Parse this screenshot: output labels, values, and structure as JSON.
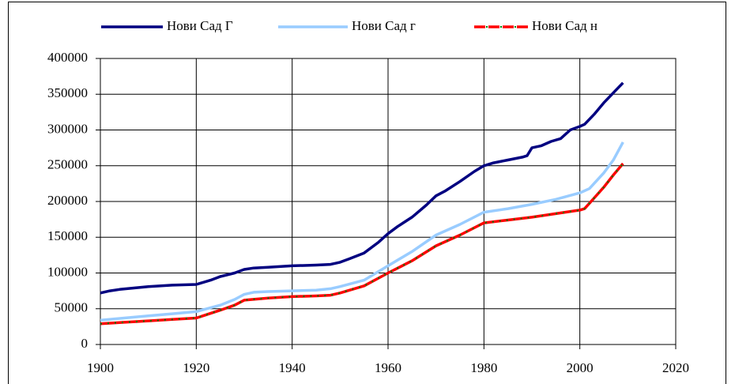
{
  "chart_data": {
    "type": "line",
    "series": [
      {
        "name": "Нови Сад Г",
        "color": "#000080",
        "x": [
          1900,
          1902,
          1904,
          1907,
          1910,
          1915,
          1920,
          1923,
          1925,
          1928,
          1930,
          1932,
          1935,
          1940,
          1945,
          1948,
          1950,
          1952,
          1955,
          1958,
          1960,
          1962,
          1965,
          1968,
          1970,
          1972,
          1975,
          1978,
          1980,
          1982,
          1985,
          1988,
          1989,
          1990,
          1992,
          1994,
          1996,
          1998,
          2000,
          2001,
          2003,
          2005,
          2007,
          2009
        ],
        "values": [
          72000,
          75000,
          77000,
          79000,
          81000,
          83000,
          84000,
          90000,
          95000,
          100000,
          105000,
          107000,
          108000,
          110000,
          111000,
          112000,
          115000,
          120000,
          128000,
          143000,
          155000,
          165000,
          178000,
          195000,
          208000,
          215000,
          228000,
          242000,
          250000,
          254000,
          258000,
          262000,
          264000,
          275000,
          278000,
          284000,
          288000,
          300000,
          305000,
          308000,
          322000,
          338000,
          352000,
          366000
        ]
      },
      {
        "name": "Нови Сад г",
        "color": "#99ccff",
        "x": [
          1900,
          1905,
          1910,
          1915,
          1920,
          1925,
          1928,
          1930,
          1932,
          1935,
          1940,
          1945,
          1948,
          1950,
          1955,
          1960,
          1965,
          1970,
          1975,
          1980,
          1985,
          1990,
          1995,
          2000,
          2002,
          2005,
          2007,
          2009
        ],
        "values": [
          34000,
          37000,
          40000,
          43000,
          46000,
          55000,
          63000,
          70000,
          73000,
          74000,
          75000,
          76000,
          78000,
          81000,
          90000,
          110000,
          130000,
          153000,
          168000,
          185000,
          190000,
          196000,
          203000,
          212000,
          218000,
          240000,
          258000,
          283000
        ]
      },
      {
        "name": "Нови Сад н",
        "color": "#ff0000",
        "marker_color": "#008000",
        "x": [
          1900,
          1905,
          1910,
          1915,
          1920,
          1925,
          1928,
          1930,
          1935,
          1940,
          1945,
          1948,
          1950,
          1955,
          1960,
          1965,
          1970,
          1975,
          1980,
          1985,
          1990,
          1995,
          2000,
          2001,
          2003,
          2005,
          2007,
          2009
        ],
        "values": [
          29000,
          31000,
          33000,
          35000,
          37000,
          48000,
          55000,
          62000,
          65000,
          67000,
          68000,
          69000,
          72000,
          82000,
          100000,
          117000,
          138000,
          153000,
          170000,
          174000,
          178000,
          183000,
          188000,
          190000,
          205000,
          220000,
          237000,
          253000
        ]
      }
    ],
    "xlim": [
      1900,
      2020
    ],
    "xticks": [
      1900,
      1920,
      1940,
      1960,
      1980,
      2000,
      2020
    ],
    "ylim": [
      0,
      400000
    ],
    "yticks": [
      0,
      50000,
      100000,
      150000,
      200000,
      250000,
      300000,
      350000,
      400000
    ],
    "grid": true,
    "legend": "top"
  }
}
